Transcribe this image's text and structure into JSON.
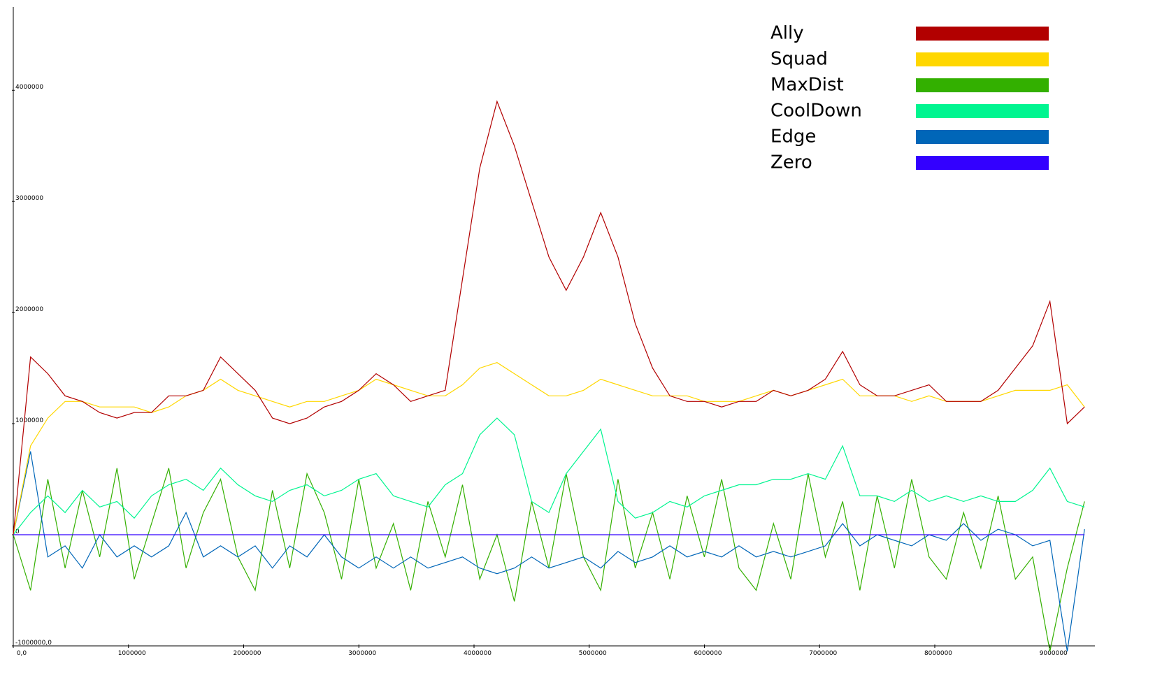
{
  "chart_data": {
    "type": "line",
    "x": [
      0,
      150000,
      300000,
      450000,
      600000,
      750000,
      900000,
      1050000,
      1200000,
      1350000,
      1500000,
      1650000,
      1800000,
      1950000,
      2100000,
      2250000,
      2400000,
      2550000,
      2700000,
      2850000,
      3000000,
      3150000,
      3300000,
      3450000,
      3600000,
      3750000,
      3900000,
      4050000,
      4200000,
      4350000,
      4500000,
      4650000,
      4800000,
      4950000,
      5100000,
      5250000,
      5400000,
      5550000,
      5700000,
      5850000,
      6000000,
      6150000,
      6300000,
      6450000,
      6600000,
      6750000,
      6900000,
      7050000,
      7200000,
      7350000,
      7500000,
      7650000,
      7800000,
      7950000,
      8100000,
      8250000,
      8400000,
      8550000,
      8700000,
      8850000,
      9000000,
      9150000,
      9300000
    ],
    "series": [
      {
        "name": "Ally",
        "color": "#b20000",
        "values": [
          0,
          1600000,
          1450000,
          1250000,
          1200000,
          1100000,
          1050000,
          1100000,
          1100000,
          1250000,
          1250000,
          1300000,
          1600000,
          1450000,
          1300000,
          1050000,
          1000000,
          1050000,
          1150000,
          1200000,
          1300000,
          1450000,
          1350000,
          1200000,
          1250000,
          1300000,
          2300000,
          3300000,
          3900000,
          3500000,
          3000000,
          2500000,
          2200000,
          2500000,
          2900000,
          2500000,
          1900000,
          1500000,
          1250000,
          1200000,
          1200000,
          1150000,
          1200000,
          1200000,
          1300000,
          1250000,
          1300000,
          1400000,
          1650000,
          1350000,
          1250000,
          1250000,
          1300000,
          1350000,
          1200000,
          1200000,
          1200000,
          1300000,
          1500000,
          1700000,
          2100000,
          1000000,
          1150000
        ]
      },
      {
        "name": "Squad",
        "color": "#ffd700",
        "values": [
          0,
          800000,
          1050000,
          1200000,
          1200000,
          1150000,
          1150000,
          1150000,
          1100000,
          1150000,
          1250000,
          1300000,
          1400000,
          1300000,
          1250000,
          1200000,
          1150000,
          1200000,
          1200000,
          1250000,
          1300000,
          1400000,
          1350000,
          1300000,
          1250000,
          1250000,
          1350000,
          1500000,
          1550000,
          1450000,
          1350000,
          1250000,
          1250000,
          1300000,
          1400000,
          1350000,
          1300000,
          1250000,
          1250000,
          1250000,
          1200000,
          1200000,
          1200000,
          1250000,
          1300000,
          1250000,
          1300000,
          1350000,
          1400000,
          1250000,
          1250000,
          1250000,
          1200000,
          1250000,
          1200000,
          1200000,
          1200000,
          1250000,
          1300000,
          1300000,
          1300000,
          1350000,
          1150000
        ]
      },
      {
        "name": "MaxDist",
        "color": "#33b000",
        "values": [
          0,
          -500000,
          500000,
          -300000,
          400000,
          -200000,
          600000,
          -400000,
          100000,
          600000,
          -300000,
          200000,
          500000,
          -200000,
          -500000,
          400000,
          -300000,
          550000,
          200000,
          -400000,
          500000,
          -300000,
          100000,
          -500000,
          300000,
          -200000,
          450000,
          -400000,
          0,
          -600000,
          300000,
          -300000,
          550000,
          -200000,
          -500000,
          500000,
          -300000,
          200000,
          -400000,
          350000,
          -200000,
          500000,
          -300000,
          -500000,
          100000,
          -400000,
          550000,
          -200000,
          300000,
          -500000,
          350000,
          -300000,
          500000,
          -200000,
          -400000,
          200000,
          -300000,
          350000,
          -400000,
          -200000,
          -1050000,
          -300000,
          300000
        ]
      },
      {
        "name": "CoolDown",
        "color": "#00f590",
        "values": [
          0,
          200000,
          350000,
          200000,
          400000,
          250000,
          300000,
          150000,
          350000,
          450000,
          500000,
          400000,
          600000,
          450000,
          350000,
          300000,
          400000,
          450000,
          350000,
          400000,
          500000,
          550000,
          350000,
          300000,
          250000,
          450000,
          550000,
          900000,
          1050000,
          900000,
          300000,
          200000,
          550000,
          750000,
          950000,
          300000,
          150000,
          200000,
          300000,
          250000,
          350000,
          400000,
          450000,
          450000,
          500000,
          500000,
          550000,
          500000,
          800000,
          350000,
          350000,
          300000,
          400000,
          300000,
          350000,
          300000,
          350000,
          300000,
          300000,
          400000,
          600000,
          300000,
          250000
        ]
      },
      {
        "name": "Edge",
        "color": "#0066b8",
        "values": [
          0,
          750000,
          -200000,
          -100000,
          -300000,
          0,
          -200000,
          -100000,
          -200000,
          -100000,
          200000,
          -200000,
          -100000,
          -200000,
          -100000,
          -300000,
          -100000,
          -200000,
          0,
          -200000,
          -300000,
          -200000,
          -300000,
          -200000,
          -300000,
          -250000,
          -200000,
          -300000,
          -350000,
          -300000,
          -200000,
          -300000,
          -250000,
          -200000,
          -300000,
          -150000,
          -250000,
          -200000,
          -100000,
          -200000,
          -150000,
          -200000,
          -100000,
          -200000,
          -150000,
          -200000,
          -150000,
          -100000,
          100000,
          -100000,
          0,
          -50000,
          -100000,
          0,
          -50000,
          100000,
          -50000,
          50000,
          0,
          -100000,
          -50000,
          -1050000,
          50000
        ]
      },
      {
        "name": "Zero",
        "color": "#3300ff",
        "values": [
          0,
          0,
          0,
          0,
          0,
          0,
          0,
          0,
          0,
          0,
          0,
          0,
          0,
          0,
          0,
          0,
          0,
          0,
          0,
          0,
          0,
          0,
          0,
          0,
          0,
          0,
          0,
          0,
          0,
          0,
          0,
          0,
          0,
          0,
          0,
          0,
          0,
          0,
          0,
          0,
          0,
          0,
          0,
          0,
          0,
          0,
          0,
          0,
          0,
          0,
          0,
          0,
          0,
          0,
          0,
          0,
          0,
          0,
          0,
          0,
          0,
          0,
          0
        ]
      }
    ],
    "xlim": [
      0,
      9390000
    ],
    "ylim": [
      -1000000,
      4750000
    ],
    "xticks": [
      {
        "value": 0,
        "label": "0,0"
      },
      1000000,
      2000000,
      3000000,
      4000000,
      5000000,
      6000000,
      7000000,
      8000000,
      9000000
    ],
    "yticks": [
      {
        "value": -1000000,
        "label": "-1000000,0"
      },
      0,
      1000000,
      2000000,
      3000000,
      4000000
    ],
    "legend": "top-right"
  }
}
